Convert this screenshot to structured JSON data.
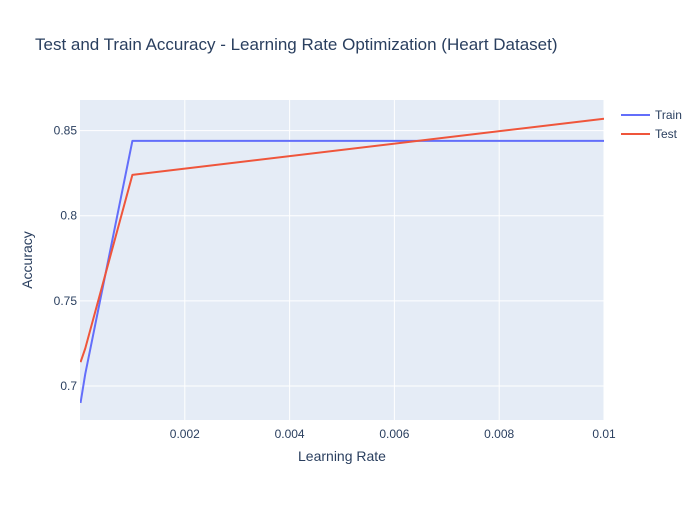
{
  "chart_data": {
    "type": "line",
    "title": "Test and Train Accuracy - Learning Rate Optimization (Heart Dataset)",
    "xlabel": "Learning Rate",
    "ylabel": "Accuracy",
    "xlim": [
      0.0,
      0.01
    ],
    "ylim": [
      0.68,
      0.868
    ],
    "x_ticks": [
      0.002,
      0.004,
      0.006,
      0.008,
      0.01
    ],
    "x_tick_labels": [
      "0.002",
      "0.004",
      "0.006",
      "0.008",
      "0.01"
    ],
    "y_ticks": [
      0.7,
      0.75,
      0.8,
      0.85
    ],
    "y_tick_labels": [
      "0.7",
      "0.75",
      "0.8",
      "0.85"
    ],
    "grid": true,
    "legend_position": "top-right",
    "background_color": "#e5ecf6",
    "series": [
      {
        "name": "Train",
        "color": "#636efa",
        "x": [
          1e-05,
          0.0001,
          0.001,
          0.01
        ],
        "y": [
          0.69,
          0.707,
          0.844,
          0.844
        ]
      },
      {
        "name": "Test",
        "color": "#ef553b",
        "x": [
          1e-05,
          0.0001,
          0.001,
          0.01
        ],
        "y": [
          0.714,
          0.722,
          0.824,
          0.857
        ]
      }
    ]
  }
}
